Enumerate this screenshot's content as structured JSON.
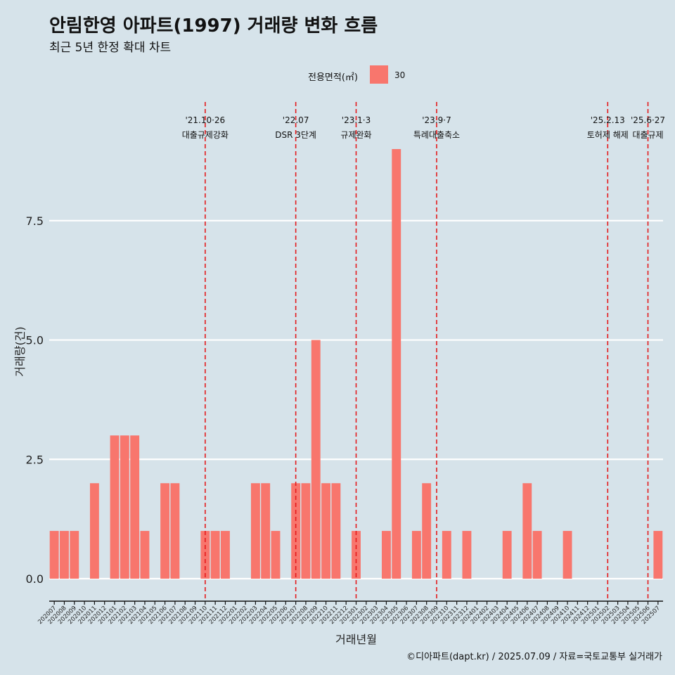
{
  "title": "안림한영 아파트(1997) 거래량 변화 흐름",
  "subtitle": "최근 5년 한정 확대 차트",
  "legend": {
    "title": "전용면적(㎡)",
    "items": [
      {
        "label": "30",
        "color": "#f8766d"
      }
    ]
  },
  "caption": "©디아파트(dapt.kr) / 2025.07.09 / 자료=국토교통부 실거래가",
  "chart_data": {
    "type": "bar",
    "xlabel": "거래년월",
    "ylabel": "거래량(건)",
    "ylim": [
      0,
      9
    ],
    "yticks": [
      0.0,
      2.5,
      5.0,
      7.5
    ],
    "ytick_labels": [
      "0.0",
      "2.5",
      "5.0",
      "7.5"
    ],
    "grid": "horizontal",
    "legend_position": "top",
    "categories": [
      "202007",
      "202008",
      "202009",
      "202010",
      "202011",
      "202012",
      "202101",
      "202102",
      "202103",
      "202104",
      "202105",
      "202106",
      "202107",
      "202108",
      "202109",
      "202110",
      "202111",
      "202112",
      "202201",
      "202202",
      "202203",
      "202204",
      "202205",
      "202206",
      "202207",
      "202208",
      "202209",
      "202210",
      "202211",
      "202212",
      "202301",
      "202302",
      "202303",
      "202304",
      "202305",
      "202306",
      "202307",
      "202308",
      "202309",
      "202310",
      "202311",
      "202312",
      "202401",
      "202402",
      "202403",
      "202404",
      "202405",
      "202406",
      "202407",
      "202408",
      "202409",
      "202410",
      "202411",
      "202412",
      "202501",
      "202502",
      "202503",
      "202504",
      "202505",
      "202506",
      "202507"
    ],
    "series": [
      {
        "name": "30",
        "color": "#f8766d",
        "values": [
          1,
          1,
          1,
          0,
          2,
          0,
          3,
          3,
          3,
          1,
          0,
          2,
          2,
          0,
          0,
          1,
          1,
          1,
          0,
          0,
          2,
          2,
          1,
          0,
          2,
          2,
          5,
          2,
          2,
          0,
          1,
          0,
          0,
          1,
          9,
          0,
          1,
          2,
          0,
          1,
          0,
          1,
          0,
          0,
          0,
          1,
          0,
          2,
          1,
          0,
          0,
          1,
          0,
          0,
          0,
          0,
          0,
          0,
          0,
          0,
          1
        ]
      }
    ],
    "annotations": [
      {
        "category": "202110",
        "line1": "'21.10·26",
        "line2": "대출규제강화"
      },
      {
        "category": "202207",
        "line1": "'22.07",
        "line2": "DSR 3단계"
      },
      {
        "category": "202301",
        "line1": "'23.1·3",
        "line2": "규제완화"
      },
      {
        "category": "202309",
        "line1": "'23.9·7",
        "line2": "특례대출축소"
      },
      {
        "category": "202502",
        "line1": "'25.2.13",
        "line2": "토허제 해제"
      },
      {
        "category": "202506",
        "line1": "'25.6·27",
        "line2": "대출규제"
      }
    ],
    "annotation_color": "#e41a1c"
  }
}
